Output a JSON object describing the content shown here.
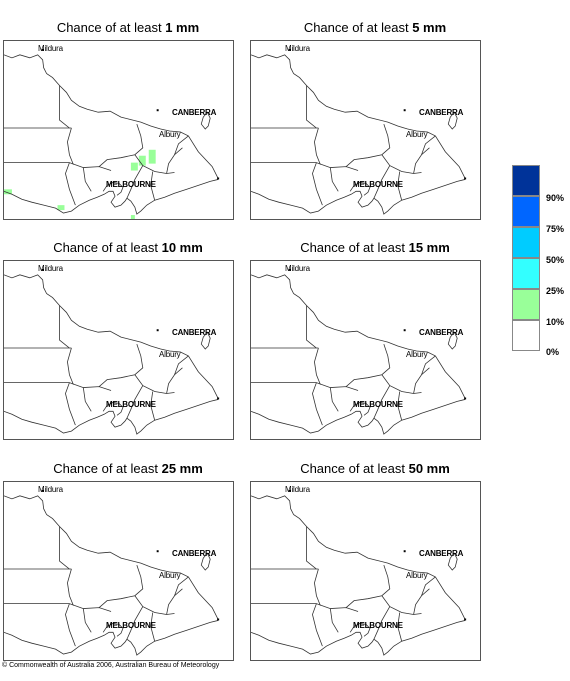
{
  "panels": [
    {
      "title_prefix": "Chance of at least ",
      "amount": "1 mm"
    },
    {
      "title_prefix": "Chance of at least ",
      "amount": "5 mm"
    },
    {
      "title_prefix": "Chance of at least ",
      "amount": "10 mm"
    },
    {
      "title_prefix": "Chance of at least ",
      "amount": "15 mm"
    },
    {
      "title_prefix": "Chance of at least ",
      "amount": "25 mm"
    },
    {
      "title_prefix": "Chance of at least ",
      "amount": "50 mm"
    }
  ],
  "map_labels": {
    "mildura": "Mildura",
    "canberra": "CANBERRA",
    "albury": "Albury",
    "melbourne": "MELBOURNE"
  },
  "legend": {
    "colors": [
      "#003399",
      "#0066ff",
      "#00ccff",
      "#33ffff",
      "#99ff99",
      "#ffffff"
    ],
    "labels": [
      "90%",
      "75%",
      "50%",
      "25%",
      "10%",
      "0%"
    ]
  },
  "footer": "© Commonwealth of Australia 2006, Australian Bureau of Meteorology"
}
